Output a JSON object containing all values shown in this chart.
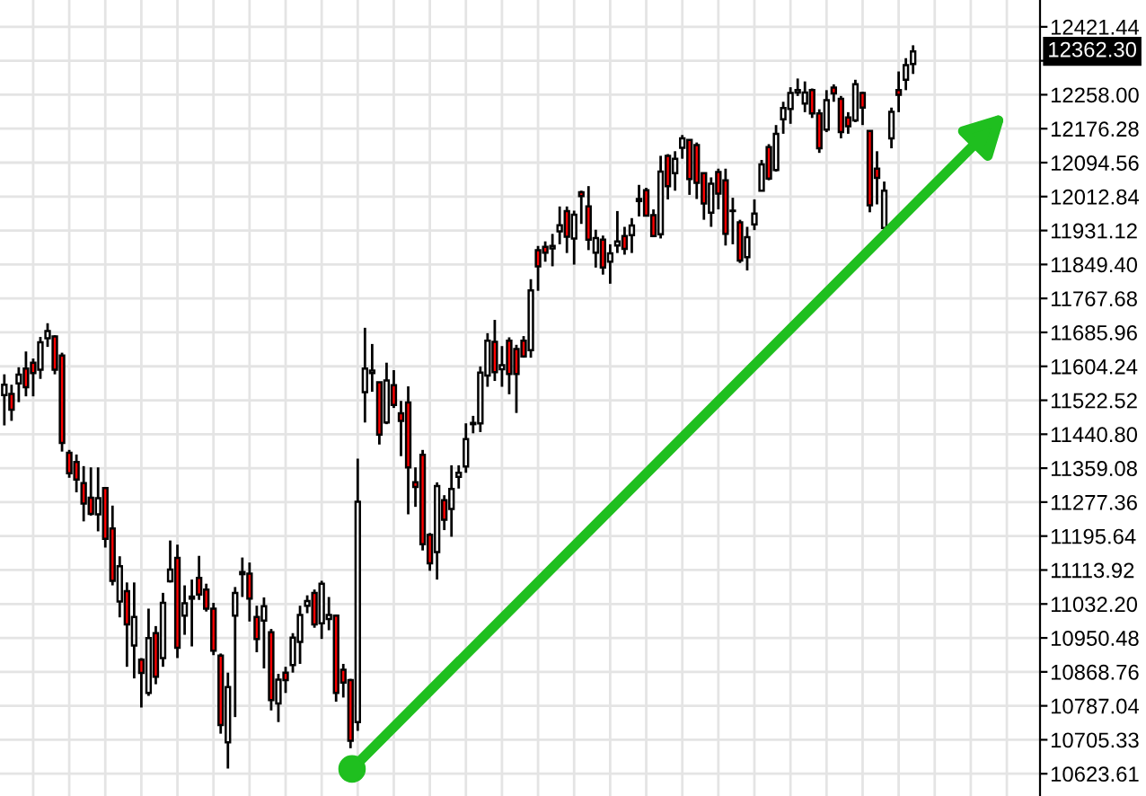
{
  "chart_data": {
    "type": "candlestick",
    "categories": [
      null,
      null,
      null,
      null,
      null,
      null,
      null,
      null,
      null,
      null,
      null,
      null,
      null,
      null,
      null,
      null,
      null,
      null,
      null,
      null,
      null,
      null,
      null,
      null,
      null,
      null,
      null,
      null,
      null,
      null,
      null,
      null,
      null,
      null,
      null,
      null,
      null,
      null,
      null,
      null,
      null,
      null,
      null,
      null,
      null,
      null,
      null,
      null,
      null,
      null,
      null,
      null,
      null,
      null,
      null,
      null,
      null,
      null,
      null,
      null,
      null,
      null,
      null,
      null,
      null,
      null,
      null,
      null,
      null,
      null,
      null,
      null,
      null,
      null,
      null,
      null,
      null,
      null,
      null,
      null,
      null,
      null,
      null,
      null,
      null,
      null,
      null,
      null,
      null,
      null,
      null,
      null,
      null,
      null,
      null,
      null,
      null,
      null,
      null,
      null,
      null,
      null,
      null,
      null,
      null,
      null,
      null,
      null,
      null,
      null,
      null,
      null,
      null,
      null,
      null,
      null,
      null,
      null,
      null,
      null,
      null,
      null,
      null,
      null,
      null,
      null,
      null,
      null,
      null,
      null,
      null,
      null,
      null,
      null,
      null,
      null,
      null,
      null,
      null,
      null,
      null,
      null,
      null,
      null
    ],
    "ohlc": [
      [
        11535,
        11585,
        11462,
        11560
      ],
      [
        11538,
        11560,
        11473,
        11500
      ],
      [
        11563,
        11602,
        11518,
        11584
      ],
      [
        11599,
        11640,
        11532,
        11554
      ],
      [
        11613,
        11623,
        11532,
        11588
      ],
      [
        11596,
        11675,
        11574,
        11662
      ],
      [
        11672,
        11708,
        11651,
        11689
      ],
      [
        11676,
        11679,
        11585,
        11596
      ],
      [
        11630,
        11637,
        11399,
        11420
      ],
      [
        11396,
        11403,
        11336,
        11347
      ],
      [
        11374,
        11392,
        11301,
        11332
      ],
      [
        11323,
        11364,
        11231,
        11274
      ],
      [
        11288,
        11361,
        11245,
        11249
      ],
      [
        11248,
        11361,
        11207,
        11287
      ],
      [
        11311,
        11311,
        11168,
        11189
      ],
      [
        11214,
        11269,
        11077,
        11088
      ],
      [
        11038,
        11147,
        11000,
        11123
      ],
      [
        11063,
        11084,
        10881,
        10983
      ],
      [
        10932,
        11084,
        10853,
        11001
      ],
      [
        10898,
        10902,
        10783,
        10866
      ],
      [
        10818,
        11021,
        10811,
        10950
      ],
      [
        10962,
        10979,
        10839,
        10857
      ],
      [
        10902,
        11059,
        10881,
        11035
      ],
      [
        11087,
        11185,
        11084,
        11115
      ],
      [
        11143,
        11175,
        10902,
        10927
      ],
      [
        11004,
        11077,
        10958,
        11034
      ],
      [
        11045,
        11091,
        10930,
        11050
      ],
      [
        11095,
        11148,
        11042,
        11055
      ],
      [
        11067,
        11081,
        11014,
        11021
      ],
      [
        11021,
        11035,
        10909,
        10920
      ],
      [
        10908,
        10913,
        10720,
        10741
      ],
      [
        10699,
        10867,
        10636,
        10832
      ],
      [
        11004,
        11073,
        10760,
        11059
      ],
      [
        11104,
        11144,
        11049,
        11109
      ],
      [
        11105,
        11132,
        10990,
        11045
      ],
      [
        11001,
        11028,
        10916,
        10948
      ],
      [
        10992,
        11048,
        10877,
        11027
      ],
      [
        10964,
        10972,
        10776,
        10801
      ],
      [
        10793,
        10864,
        10748,
        10850
      ],
      [
        10867,
        10881,
        10818,
        10849
      ],
      [
        10885,
        10962,
        10867,
        10951
      ],
      [
        10941,
        11028,
        10888,
        11006
      ],
      [
        11028,
        11053,
        11010,
        11039
      ],
      [
        11059,
        11067,
        10975,
        10983
      ],
      [
        10986,
        11088,
        10948,
        11081
      ],
      [
        10996,
        11049,
        10969,
        11006
      ],
      [
        11004,
        11007,
        10797,
        10818
      ],
      [
        10874,
        10888,
        10807,
        10843
      ],
      [
        10849,
        10852,
        10685,
        10703
      ],
      [
        10748,
        11382,
        10727,
        11278
      ],
      [
        11542,
        11697,
        11469,
        11599
      ],
      [
        11588,
        11658,
        11543,
        11594
      ],
      [
        11566,
        11567,
        11416,
        11440
      ],
      [
        11469,
        11613,
        11465,
        11570
      ],
      [
        11559,
        11595,
        11504,
        11511
      ],
      [
        11491,
        11521,
        11388,
        11473
      ],
      [
        11517,
        11556,
        11248,
        11361
      ],
      [
        11325,
        11361,
        11266,
        11314
      ],
      [
        11391,
        11403,
        11161,
        11176
      ],
      [
        11199,
        11203,
        11112,
        11130
      ],
      [
        11157,
        11325,
        11091,
        11316
      ],
      [
        11282,
        11294,
        11210,
        11235
      ],
      [
        11261,
        11366,
        11194,
        11309
      ],
      [
        11338,
        11366,
        11310,
        11348
      ],
      [
        11363,
        11467,
        11348,
        11429
      ],
      [
        11465,
        11485,
        11443,
        11468
      ],
      [
        11467,
        11604,
        11446,
        11589
      ],
      [
        11582,
        11684,
        11555,
        11666
      ],
      [
        11663,
        11716,
        11569,
        11590
      ],
      [
        11597,
        11653,
        11555,
        11607
      ],
      [
        11666,
        11674,
        11537,
        11586
      ],
      [
        11646,
        11656,
        11492,
        11586
      ],
      [
        11666,
        11677,
        11625,
        11628
      ],
      [
        11643,
        11814,
        11625,
        11787
      ],
      [
        11884,
        11894,
        11786,
        11845
      ],
      [
        11892,
        11905,
        11856,
        11878
      ],
      [
        11888,
        11923,
        11845,
        11894
      ],
      [
        11929,
        11989,
        11898,
        11944
      ],
      [
        11978,
        11989,
        11877,
        11916
      ],
      [
        11912,
        11979,
        11849,
        11969
      ],
      [
        12023,
        12027,
        11947,
        12014
      ],
      [
        11989,
        12038,
        11884,
        11909
      ],
      [
        11878,
        11933,
        11842,
        11913
      ],
      [
        11909,
        11919,
        11825,
        11842
      ],
      [
        11856,
        11898,
        11803,
        11876
      ],
      [
        11895,
        11978,
        11877,
        11905
      ],
      [
        11918,
        11940,
        11873,
        11887
      ],
      [
        11920,
        11961,
        11877,
        11943
      ],
      [
        12007,
        12041,
        11965,
        12002
      ],
      [
        12028,
        12034,
        11965,
        11967
      ],
      [
        11968,
        11982,
        11915,
        11918
      ],
      [
        11922,
        12111,
        11912,
        12073
      ],
      [
        12111,
        12115,
        12006,
        12038
      ],
      [
        12069,
        12122,
        12027,
        12104
      ],
      [
        12130,
        12161,
        12104,
        12153
      ],
      [
        12149,
        12149,
        12017,
        12055
      ],
      [
        12137,
        12143,
        12007,
        12046
      ],
      [
        12069,
        12069,
        11957,
        11996
      ],
      [
        11974,
        12059,
        11940,
        12044
      ],
      [
        12072,
        12080,
        11982,
        12020
      ],
      [
        12052,
        12080,
        11895,
        11923
      ],
      [
        11978,
        12010,
        11898,
        11979
      ],
      [
        11951,
        11957,
        11853,
        11859
      ],
      [
        11867,
        11940,
        11835,
        11915
      ],
      [
        11946,
        12006,
        11932,
        11972
      ],
      [
        12027,
        12101,
        12027,
        12090
      ],
      [
        12132,
        12139,
        12052,
        12056
      ],
      [
        12077,
        12185,
        12073,
        12164
      ],
      [
        12199,
        12241,
        12164,
        12226
      ],
      [
        12224,
        12276,
        12188,
        12262
      ],
      [
        12263,
        12297,
        12255,
        12269
      ],
      [
        12237,
        12290,
        12216,
        12263
      ],
      [
        12269,
        12273,
        12202,
        12213
      ],
      [
        12213,
        12223,
        12118,
        12129
      ],
      [
        12174,
        12269,
        12168,
        12245
      ],
      [
        12275,
        12283,
        12241,
        12261
      ],
      [
        12248,
        12255,
        12153,
        12168
      ],
      [
        12203,
        12216,
        12164,
        12182
      ],
      [
        12196,
        12294,
        12192,
        12283
      ],
      [
        12262,
        12265,
        12185,
        12227
      ],
      [
        12171,
        12171,
        11975,
        11992
      ],
      [
        12080,
        12122,
        11994,
        12058
      ],
      [
        11937,
        12049,
        11929,
        12027
      ],
      [
        12153,
        12227,
        12129,
        12217
      ],
      [
        12269,
        12314,
        12216,
        12258
      ],
      [
        12294,
        12346,
        12269,
        12329
      ],
      [
        12332,
        12377,
        12308,
        12362.3
      ],
      null,
      null,
      null,
      null,
      null,
      null,
      null,
      null,
      null,
      null,
      null,
      null,
      null,
      null,
      null,
      null,
      null
    ],
    "ylim": [
      10570,
      12486
    ],
    "yticks": [
      10623.61,
      10705.33,
      10787.04,
      10868.76,
      10950.48,
      {
        "value": 11032.2,
        "label": "11032.20"
      },
      11113.92,
      11195.64,
      11277.36,
      11359.08,
      {
        "value": 11440.8,
        "label": "11440.80"
      },
      11522.52,
      11604.24,
      11685.96,
      11767.68,
      {
        "value": 11849.4,
        "label": "11849.40"
      },
      11931.12,
      12012.84,
      12094.56,
      12176.28,
      {
        "value": 12258.0,
        "label": "12258.00"
      },
      {
        "value": 12339.72,
        "label": null
      },
      12421.44
    ],
    "annotations": [
      "12362.30"
    ],
    "grid": true,
    "tick_labels": "y"
  }
}
